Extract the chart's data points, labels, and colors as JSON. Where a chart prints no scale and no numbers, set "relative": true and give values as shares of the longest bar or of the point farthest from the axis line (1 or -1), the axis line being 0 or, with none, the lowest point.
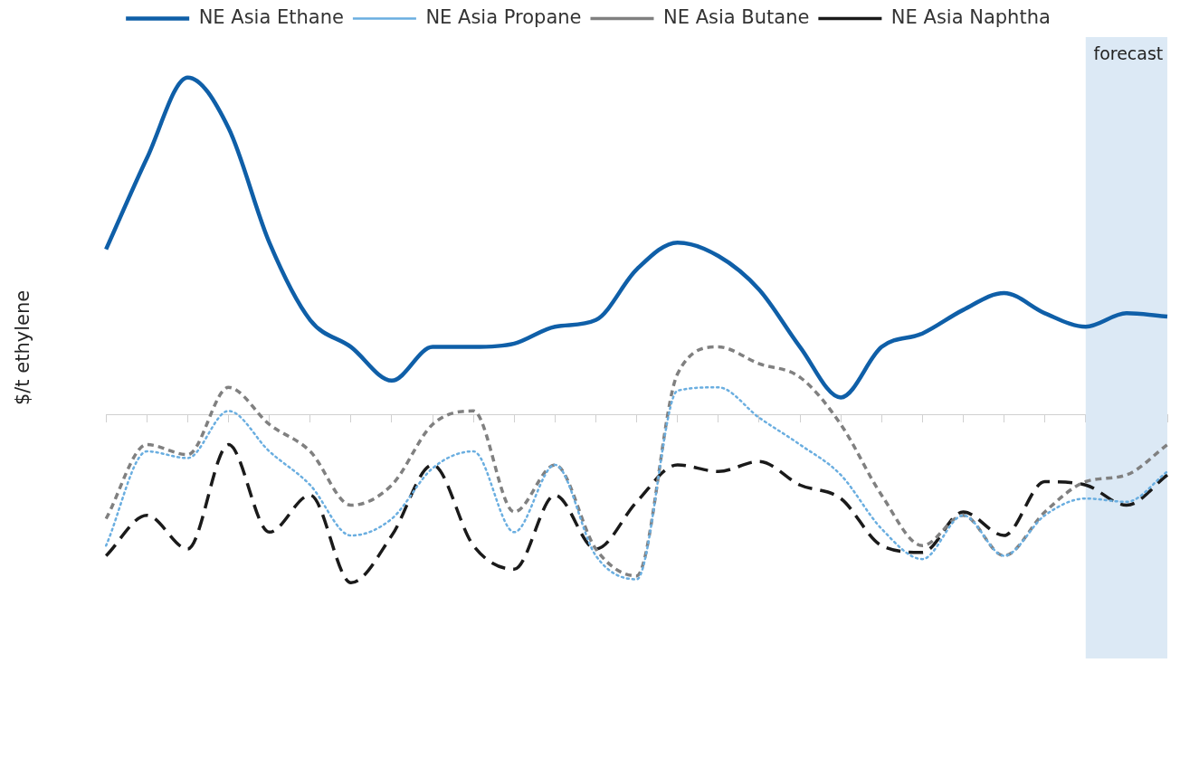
{
  "chart_data": {
    "type": "line",
    "ylabel": "$/t ethylene",
    "relative": true,
    "legend": "top",
    "grid": false,
    "marker": "none",
    "categories": [
      null,
      null,
      null,
      null,
      null,
      null,
      null,
      null,
      null,
      null,
      null,
      null,
      null,
      null,
      null,
      null,
      null,
      null,
      null,
      null,
      null,
      null,
      null,
      null,
      null,
      null,
      null
    ],
    "series": [
      {
        "name": "NE Asia Ethane",
        "color": "#0f5fa8",
        "line_style": "solid",
        "values": [
          0.49,
          0.76,
          1.0,
          0.85,
          0.51,
          0.28,
          0.2,
          0.1,
          0.2,
          0.2,
          0.21,
          0.26,
          0.28,
          0.43,
          0.51,
          0.47,
          0.37,
          0.2,
          0.05,
          0.2,
          0.24,
          0.31,
          0.36,
          0.3,
          0.26,
          0.3,
          0.29
        ]
      },
      {
        "name": "NE Asia Propane",
        "color": "#6aaee0",
        "line_style": "dotted",
        "values": [
          -0.39,
          -0.11,
          -0.13,
          0.01,
          -0.11,
          -0.21,
          -0.36,
          -0.31,
          -0.16,
          -0.11,
          -0.35,
          -0.15,
          -0.42,
          -0.49,
          0.07,
          0.08,
          -0.01,
          -0.09,
          -0.18,
          -0.34,
          -0.43,
          -0.3,
          -0.42,
          -0.3,
          -0.25,
          -0.26,
          -0.17
        ]
      },
      {
        "name": "NE Asia Butane",
        "color": "#808080",
        "line_style": "dashed",
        "values": [
          -0.31,
          -0.09,
          -0.12,
          0.08,
          -0.03,
          -0.11,
          -0.27,
          -0.21,
          -0.03,
          0.01,
          -0.29,
          -0.15,
          -0.4,
          -0.48,
          0.12,
          0.2,
          0.15,
          0.11,
          -0.03,
          -0.24,
          -0.39,
          -0.3,
          -0.42,
          -0.29,
          -0.2,
          -0.18,
          -0.09
        ]
      },
      {
        "name": "NE Asia Naphtha",
        "color": "#1a1a1a",
        "line_style": "dashed",
        "values": [
          -0.42,
          -0.3,
          -0.4,
          -0.09,
          -0.35,
          -0.24,
          -0.5,
          -0.36,
          -0.15,
          -0.39,
          -0.46,
          -0.24,
          -0.4,
          -0.26,
          -0.15,
          -0.17,
          -0.14,
          -0.21,
          -0.25,
          -0.39,
          -0.41,
          -0.29,
          -0.36,
          -0.2,
          -0.21,
          -0.27,
          -0.18
        ]
      }
    ],
    "annotations": [
      "forecast"
    ]
  }
}
